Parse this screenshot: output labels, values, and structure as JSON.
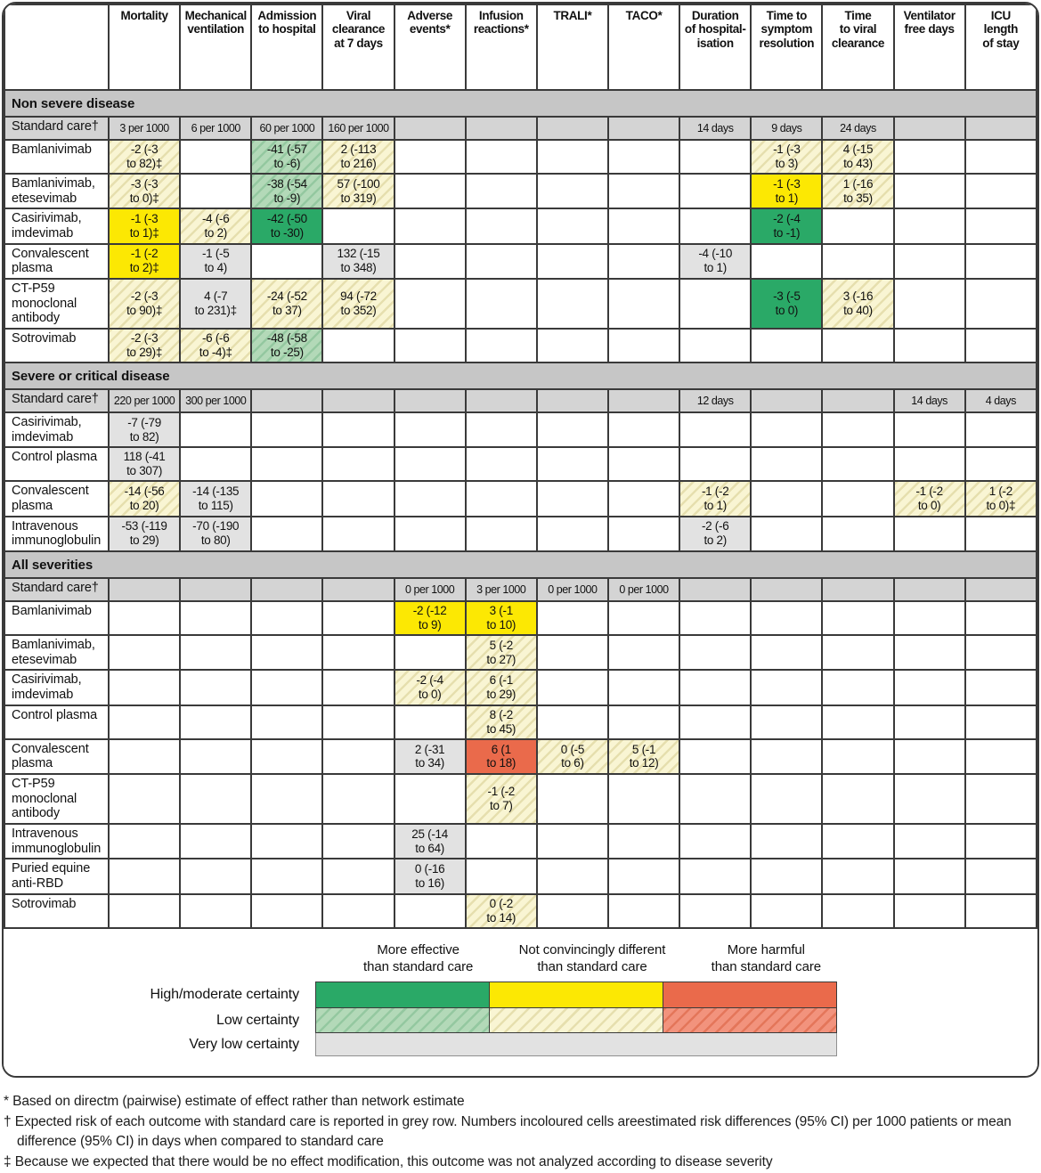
{
  "colors": {
    "green": "#2aa967",
    "yellow": "#fce803",
    "red": "#ea6a4b",
    "grey_cell": "#e2e2e2",
    "section_bar": "#c6c6c6",
    "standard_row": "#d4d4d4"
  },
  "table": {
    "columns": [
      "Mortality",
      "Mechanical\nventilation",
      "Admission\nto hospital",
      "Viral\nclearance\nat 7 days",
      "Adverse\nevents*",
      "Infusion\nreactions*",
      "TRALI*",
      "TACO*",
      "Duration\nof hospital-\nisation",
      "Time to\nsymptom\nresolution",
      "Time\nto viral\nclearance",
      "Ventilator\nfree days",
      "ICU\nlength\nof stay"
    ],
    "sections": [
      {
        "title": "Non severe disease",
        "rows": [
          {
            "label": "Standard care†",
            "standard": true,
            "cells": [
              {
                "c": 1,
                "t": "3 per 1000"
              },
              {
                "c": 2,
                "t": "6 per 1000"
              },
              {
                "c": 3,
                "t": "60 per 1000"
              },
              {
                "c": 4,
                "t": "160 per 1000"
              },
              {
                "c": 9,
                "t": "14 days"
              },
              {
                "c": 10,
                "t": "9 days"
              },
              {
                "c": 11,
                "t": "24 days"
              }
            ]
          },
          {
            "label": "Bamlanivimab",
            "cells": [
              {
                "c": 1,
                "t": "-2 (-3\nto 82)‡",
                "s": "yh"
              },
              {
                "c": 3,
                "t": "-41 (-57\nto -6)",
                "s": "gh"
              },
              {
                "c": 4,
                "t": "2 (-113\nto 216)",
                "s": "yh"
              },
              {
                "c": 10,
                "t": "-1 (-3\nto 3)",
                "s": "yh"
              },
              {
                "c": 11,
                "t": "4 (-15\nto 43)",
                "s": "yh"
              }
            ]
          },
          {
            "label": "Bamlanivimab,\netesevimab",
            "cells": [
              {
                "c": 1,
                "t": "-3 (-3\nto 0)‡",
                "s": "yh"
              },
              {
                "c": 3,
                "t": "-38 (-54\nto -9)",
                "s": "gh"
              },
              {
                "c": 4,
                "t": "57 (-100\nto 319)",
                "s": "yh"
              },
              {
                "c": 10,
                "t": "-1 (-3\nto 1)",
                "s": "y"
              },
              {
                "c": 11,
                "t": "1 (-16\nto 35)",
                "s": "yh"
              }
            ]
          },
          {
            "label": "Casirivimab,\nimdevimab",
            "cells": [
              {
                "c": 1,
                "t": "-1 (-3\nto 1)‡",
                "s": "y"
              },
              {
                "c": 2,
                "t": "-4 (-6\nto 2)",
                "s": "yh"
              },
              {
                "c": 3,
                "t": "-42 (-50\nto -30)",
                "s": "g"
              },
              {
                "c": 10,
                "t": "-2 (-4\nto -1)",
                "s": "g"
              }
            ]
          },
          {
            "label": "Convalescent\nplasma",
            "cells": [
              {
                "c": 1,
                "t": "-1 (-2\nto 2)‡",
                "s": "y"
              },
              {
                "c": 2,
                "t": "-1 (-5\nto 4)",
                "s": "gr"
              },
              {
                "c": 4,
                "t": "132 (-15\nto 348)",
                "s": "gr"
              },
              {
                "c": 9,
                "t": "-4 (-10\nto 1)",
                "s": "gr"
              }
            ]
          },
          {
            "label": "CT-P59\nmonoclonal\nantibody",
            "cells": [
              {
                "c": 1,
                "t": "-2 (-3\nto 90)‡",
                "s": "yh"
              },
              {
                "c": 2,
                "t": "4 (-7\nto 231)‡",
                "s": "gr"
              },
              {
                "c": 3,
                "t": "-24 (-52\nto 37)",
                "s": "yh"
              },
              {
                "c": 4,
                "t": "94 (-72\nto 352)",
                "s": "yh"
              },
              {
                "c": 10,
                "t": "-3 (-5\nto 0)",
                "s": "g"
              },
              {
                "c": 11,
                "t": "3 (-16\nto 40)",
                "s": "yh"
              }
            ]
          },
          {
            "label": "Sotrovimab",
            "cells": [
              {
                "c": 1,
                "t": "-2 (-3\nto 29)‡",
                "s": "yh"
              },
              {
                "c": 2,
                "t": "-6 (-6\nto -4)‡",
                "s": "yh"
              },
              {
                "c": 3,
                "t": "-48 (-58\nto -25)",
                "s": "gh"
              }
            ]
          }
        ]
      },
      {
        "title": "Severe or critical disease",
        "rows": [
          {
            "label": "Standard care†",
            "standard": true,
            "cells": [
              {
                "c": 1,
                "t": "220 per 1000"
              },
              {
                "c": 2,
                "t": "300 per 1000"
              },
              {
                "c": 9,
                "t": "12 days"
              },
              {
                "c": 12,
                "t": "14 days"
              },
              {
                "c": 13,
                "t": "4 days"
              }
            ]
          },
          {
            "label": "Casirivimab,\nimdevimab",
            "cells": [
              {
                "c": 1,
                "t": "-7 (-79\nto 82)",
                "s": "gr"
              }
            ]
          },
          {
            "label": "Control plasma",
            "cells": [
              {
                "c": 1,
                "t": "118 (-41\nto 307)",
                "s": "gr"
              }
            ]
          },
          {
            "label": "Convalescent\nplasma",
            "cells": [
              {
                "c": 1,
                "t": "-14 (-56\nto 20)",
                "s": "yh"
              },
              {
                "c": 2,
                "t": "-14 (-135\nto 115)",
                "s": "gr"
              },
              {
                "c": 9,
                "t": "-1 (-2\nto 1)",
                "s": "yh"
              },
              {
                "c": 12,
                "t": "-1 (-2\nto 0)",
                "s": "yh"
              },
              {
                "c": 13,
                "t": "1 (-2\nto 0)‡",
                "s": "yh"
              }
            ]
          },
          {
            "label": "Intravenous\nimmunoglobulin",
            "cells": [
              {
                "c": 1,
                "t": "-53 (-119\nto 29)",
                "s": "gr"
              },
              {
                "c": 2,
                "t": "-70 (-190\nto 80)",
                "s": "gr"
              },
              {
                "c": 9,
                "t": "-2 (-6\nto 2)",
                "s": "gr"
              }
            ]
          }
        ]
      },
      {
        "title": "All severities",
        "rows": [
          {
            "label": "Standard care†",
            "standard": true,
            "cells": [
              {
                "c": 5,
                "t": "0 per 1000"
              },
              {
                "c": 6,
                "t": "3 per 1000"
              },
              {
                "c": 7,
                "t": "0 per 1000"
              },
              {
                "c": 8,
                "t": "0 per 1000"
              }
            ]
          },
          {
            "label": "Bamlanivimab",
            "cells": [
              {
                "c": 5,
                "t": "-2 (-12\nto 9)",
                "s": "y"
              },
              {
                "c": 6,
                "t": "3 (-1\nto 10)",
                "s": "y"
              }
            ]
          },
          {
            "label": "Bamlanivimab,\netesevimab",
            "cells": [
              {
                "c": 6,
                "t": "5 (-2\nto 27)",
                "s": "yh"
              }
            ]
          },
          {
            "label": "Casirivimab,\nimdevimab",
            "cells": [
              {
                "c": 5,
                "t": "-2 (-4\nto 0)",
                "s": "yh"
              },
              {
                "c": 6,
                "t": "6 (-1\nto 29)",
                "s": "yh"
              }
            ]
          },
          {
            "label": "Control plasma",
            "cells": [
              {
                "c": 6,
                "t": "8 (-2\nto 45)",
                "s": "yh"
              }
            ]
          },
          {
            "label": "Convalescent\nplasma",
            "cells": [
              {
                "c": 5,
                "t": "2 (-31\nto 34)",
                "s": "gr"
              },
              {
                "c": 6,
                "t": "6 (1\nto 18)",
                "s": "r"
              },
              {
                "c": 7,
                "t": "0 (-5\nto 6)",
                "s": "yh"
              },
              {
                "c": 8,
                "t": "5 (-1\nto 12)",
                "s": "yh"
              }
            ]
          },
          {
            "label": "CT-P59\nmonoclonal\nantibody",
            "cells": [
              {
                "c": 6,
                "t": "-1 (-2\nto 7)",
                "s": "yh"
              }
            ]
          },
          {
            "label": "Intravenous\nimmunoglobulin",
            "cells": [
              {
                "c": 5,
                "t": "25 (-14\nto 64)",
                "s": "gr"
              }
            ]
          },
          {
            "label": "Puried equine\nanti-RBD",
            "cells": [
              {
                "c": 5,
                "t": "0 (-16\nto 16)",
                "s": "gr"
              }
            ]
          },
          {
            "label": "Sotrovimab",
            "cells": [
              {
                "c": 6,
                "t": "0 (-2\nto 14)",
                "s": "yh"
              }
            ]
          }
        ]
      }
    ]
  },
  "legend": {
    "col_headers": {
      "effective": "More effective\nthan standard care",
      "not_different": "Not convincingly different\nthan standard care",
      "harmful": "More harmful\nthan standard care"
    },
    "row_labels": {
      "high": "High/moderate certainty",
      "low": "Low certainty",
      "very_low": "Very low certainty"
    }
  },
  "footnotes": {
    "star": "* Based on directm (pairwise) estimate of effect rather than network estimate",
    "dagger": "† Expected risk of each outcome with standard care is reported in grey row. Numbers incoloured cells areestimated risk differences (95% CI) per 1000 patients or mean difference (95% CI) in days when compared to standard care",
    "double_dagger": "‡ Because we expected that there would be no effect modification, this outcome was not analyzed according to disease severity"
  }
}
